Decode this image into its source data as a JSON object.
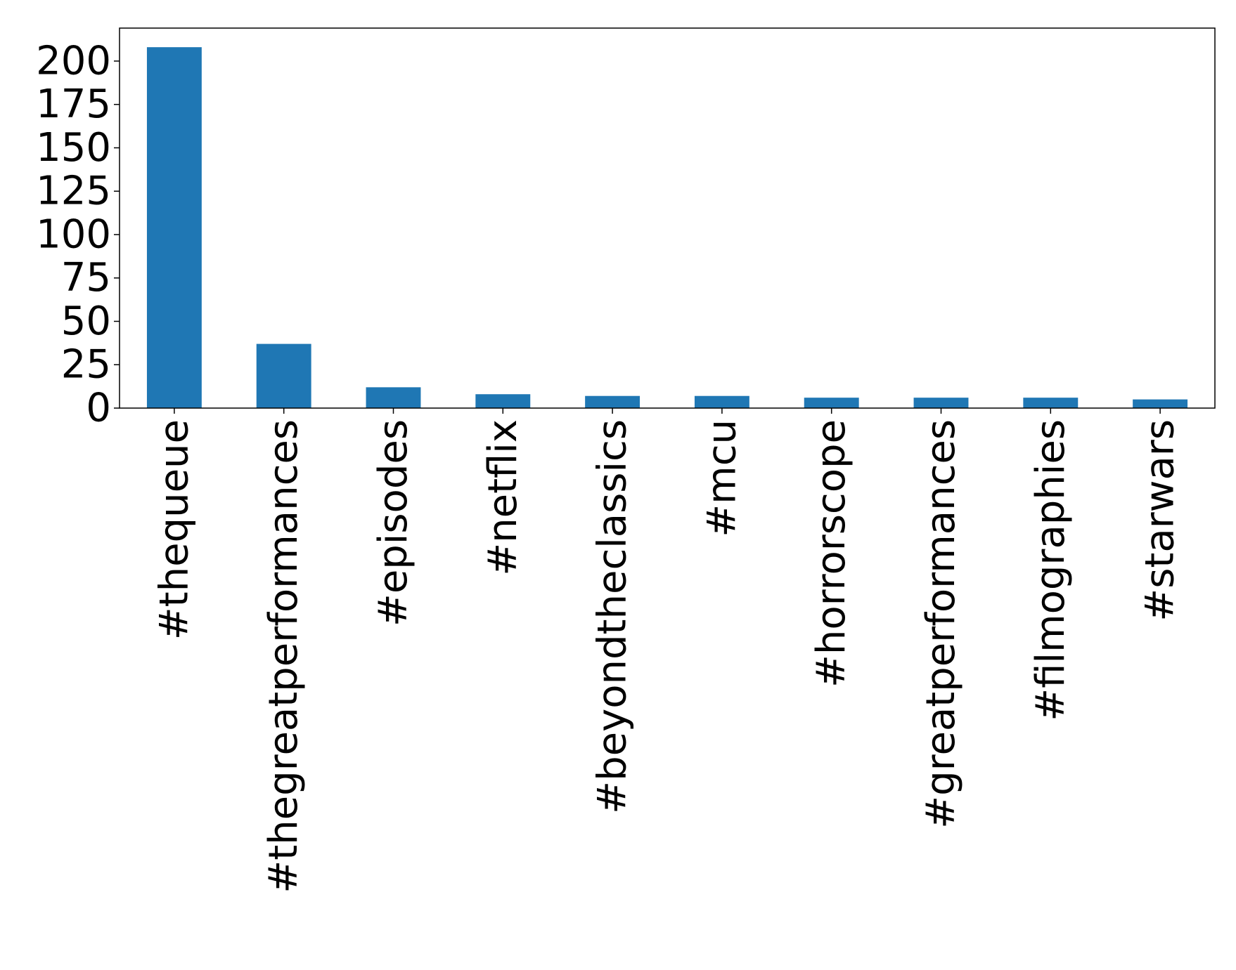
{
  "chart_data": {
    "type": "bar",
    "title": "",
    "xlabel": "",
    "ylabel": "",
    "categories": [
      "#thequeue",
      "#thegreatperformances",
      "#episodes",
      "#netflix",
      "#beyondtheclassics",
      "#mcu",
      "#horrorscope",
      "#greatperformances",
      "#filmographies",
      "#starwars"
    ],
    "values": [
      208,
      37,
      12,
      8,
      7,
      7,
      6,
      6,
      6,
      5
    ],
    "ylim": [
      0,
      219
    ],
    "yticks": [
      0,
      25,
      50,
      75,
      100,
      125,
      150,
      175,
      200
    ],
    "bar_color": "#1f77b4",
    "grid": false,
    "legend": "none"
  }
}
